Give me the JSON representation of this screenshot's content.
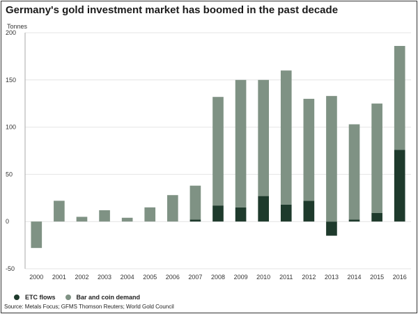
{
  "title": "Germany's gold investment market has boomed in the past decade",
  "unit_label": "Tonnes",
  "source": "Source: Metals Focus; GFMS Thomson Reuters; World Gold Council",
  "colors": {
    "etc": "#1e3a2c",
    "bar_coin": "#7f9284",
    "grid": "#e4e4e4",
    "axis": "#aaaaaa"
  },
  "chart_data": {
    "type": "bar",
    "stacked": true,
    "title": "Germany's gold investment market has boomed in the past decade",
    "ylabel": "Tonnes",
    "xlabel": "",
    "ylim": [
      -50,
      200
    ],
    "yticks": [
      -50,
      0,
      50,
      100,
      150,
      200
    ],
    "grid": true,
    "legend_position": "bottom-left",
    "categories": [
      "2000",
      "2001",
      "2002",
      "2003",
      "2004",
      "2005",
      "2006",
      "2007",
      "2008",
      "2009",
      "2010",
      "2011",
      "2012",
      "2013",
      "2014",
      "2015",
      "2016"
    ],
    "series": [
      {
        "name": "ETC flows",
        "color": "#1e3a2c",
        "values": [
          0,
          0,
          0,
          0,
          0,
          0,
          0,
          2,
          17,
          15,
          27,
          18,
          22,
          -15,
          2,
          9,
          76
        ]
      },
      {
        "name": "Bar and coin demand",
        "color": "#7f9284",
        "values": [
          -28,
          22,
          5,
          12,
          4,
          15,
          28,
          36,
          115,
          135,
          123,
          142,
          108,
          133,
          101,
          116,
          110
        ]
      }
    ]
  }
}
